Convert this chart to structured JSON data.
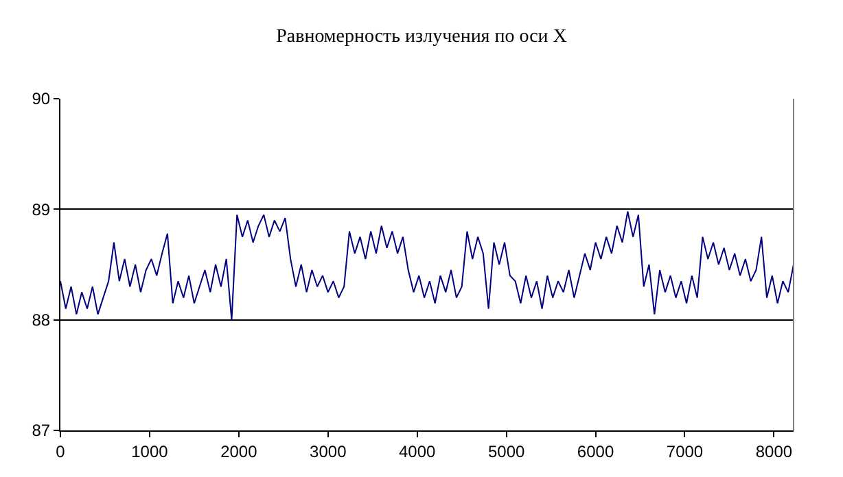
{
  "chart_data": {
    "type": "line",
    "title": "Равномерность излучения по оси X",
    "x": [
      0,
      60,
      120,
      180,
      240,
      300,
      360,
      420,
      480,
      540,
      600,
      660,
      720,
      780,
      840,
      900,
      960,
      1020,
      1080,
      1140,
      1200,
      1260,
      1320,
      1380,
      1440,
      1500,
      1560,
      1620,
      1680,
      1740,
      1800,
      1860,
      1920,
      1980,
      2040,
      2100,
      2160,
      2220,
      2280,
      2340,
      2400,
      2460,
      2520,
      2580,
      2640,
      2700,
      2760,
      2820,
      2880,
      2940,
      3000,
      3060,
      3120,
      3180,
      3240,
      3300,
      3360,
      3420,
      3480,
      3540,
      3600,
      3660,
      3720,
      3780,
      3840,
      3900,
      3960,
      4020,
      4080,
      4140,
      4200,
      4260,
      4320,
      4380,
      4440,
      4500,
      4560,
      4620,
      4680,
      4740,
      4800,
      4860,
      4920,
      4980,
      5040,
      5100,
      5160,
      5220,
      5280,
      5340,
      5400,
      5460,
      5520,
      5580,
      5640,
      5700,
      5760,
      5820,
      5880,
      5940,
      6000,
      6060,
      6120,
      6180,
      6240,
      6300,
      6360,
      6420,
      6480,
      6540,
      6600,
      6660,
      6720,
      6780,
      6840,
      6900,
      6960,
      7020,
      7080,
      7140,
      7200,
      7260,
      7320,
      7380,
      7440,
      7500,
      7560,
      7620,
      7680,
      7740,
      7800,
      7860,
      7920,
      7980,
      8040,
      8100,
      8160,
      8220
    ],
    "series": [
      {
        "color": "#000080",
        "values": [
          88.35,
          88.1,
          88.3,
          88.05,
          88.25,
          88.1,
          88.3,
          88.05,
          88.2,
          88.35,
          88.7,
          88.35,
          88.55,
          88.3,
          88.5,
          88.25,
          88.45,
          88.55,
          88.4,
          88.6,
          88.78,
          88.15,
          88.35,
          88.2,
          88.4,
          88.15,
          88.3,
          88.45,
          88.25,
          88.5,
          88.3,
          88.55,
          88.0,
          88.95,
          88.75,
          88.9,
          88.7,
          88.85,
          88.95,
          88.75,
          88.9,
          88.8,
          88.92,
          88.55,
          88.3,
          88.5,
          88.25,
          88.45,
          88.3,
          88.4,
          88.25,
          88.35,
          88.2,
          88.3,
          88.8,
          88.6,
          88.75,
          88.55,
          88.8,
          88.6,
          88.85,
          88.65,
          88.8,
          88.6,
          88.75,
          88.45,
          88.25,
          88.4,
          88.2,
          88.35,
          88.15,
          88.4,
          88.25,
          88.45,
          88.2,
          88.3,
          88.8,
          88.55,
          88.75,
          88.6,
          88.1,
          88.7,
          88.5,
          88.7,
          88.4,
          88.35,
          88.15,
          88.4,
          88.2,
          88.35,
          88.1,
          88.4,
          88.2,
          88.35,
          88.25,
          88.45,
          88.2,
          88.4,
          88.6,
          88.45,
          88.7,
          88.55,
          88.75,
          88.6,
          88.85,
          88.7,
          88.98,
          88.75,
          88.95,
          88.3,
          88.5,
          88.05,
          88.45,
          88.25,
          88.4,
          88.2,
          88.35,
          88.15,
          88.4,
          88.2,
          88.75,
          88.55,
          88.7,
          88.5,
          88.65,
          88.45,
          88.6,
          88.4,
          88.55,
          88.35,
          88.45,
          88.75,
          88.2,
          88.4,
          88.15,
          88.35,
          88.25,
          88.5
        ]
      }
    ],
    "xlim": [
      0,
      8220
    ],
    "xticks": [
      0,
      1000,
      2000,
      3000,
      4000,
      5000,
      6000,
      7000,
      8000
    ],
    "ylim": [
      87,
      90
    ],
    "yticks": [
      87,
      88,
      89,
      90
    ],
    "grid": "y",
    "marker": "none",
    "line_style": "solid"
  }
}
